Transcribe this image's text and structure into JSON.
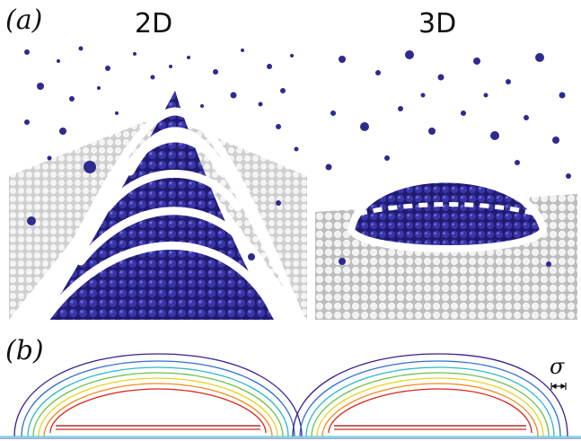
{
  "figure": {
    "panel_a_label": "(a)",
    "panel_b_label": "(b)",
    "left_title": "2D",
    "right_title": "3D",
    "scale_symbol": "σ"
  },
  "colors": {
    "particle_blue": "#2e2a8e",
    "substrate_white": "#e8e8e8",
    "outline_white": "#ffffff",
    "contour_colors": [
      "#3a1e8c",
      "#2f6fd0",
      "#2bb7c9",
      "#6cc04a",
      "#e8d21f",
      "#f08a1f",
      "#d8261e",
      "#8b0d12"
    ]
  },
  "icons": {
    "scale_bar": "double-arrow-icon"
  }
}
